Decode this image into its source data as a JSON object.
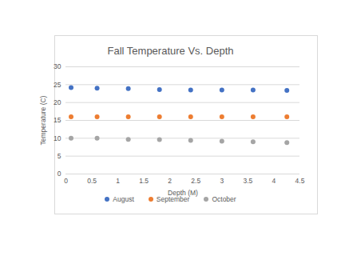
{
  "chart_data": {
    "type": "scatter",
    "title": "Fall Temperature Vs. Depth",
    "x_label": "Depth (M)",
    "y_label": "Temperature (C)",
    "x": [
      0.1,
      0.6,
      1.2,
      1.8,
      2.4,
      3.0,
      3.6,
      4.25
    ],
    "series": [
      {
        "name": "August",
        "color": "#4472c4",
        "values": [
          24.2,
          24.0,
          23.9,
          23.6,
          23.5,
          23.5,
          23.5,
          23.4
        ]
      },
      {
        "name": "September",
        "color": "#ed7d31",
        "values": [
          16.0,
          16.0,
          16.0,
          16.0,
          16.0,
          16.0,
          16.0,
          16.0
        ]
      },
      {
        "name": "October",
        "color": "#a5a5a5",
        "values": [
          10.0,
          10.0,
          9.7,
          9.6,
          9.4,
          9.2,
          9.0,
          8.8
        ]
      }
    ],
    "xlim": [
      0,
      4.5
    ],
    "xticks": [
      0,
      0.5,
      1,
      1.5,
      2,
      2.5,
      3,
      3.5,
      4,
      4.5
    ],
    "ylim": [
      0,
      30
    ],
    "yticks": [
      0,
      5,
      10,
      15,
      20,
      25,
      30
    ],
    "grid": true,
    "legend": "bottom",
    "marker": "circle"
  }
}
